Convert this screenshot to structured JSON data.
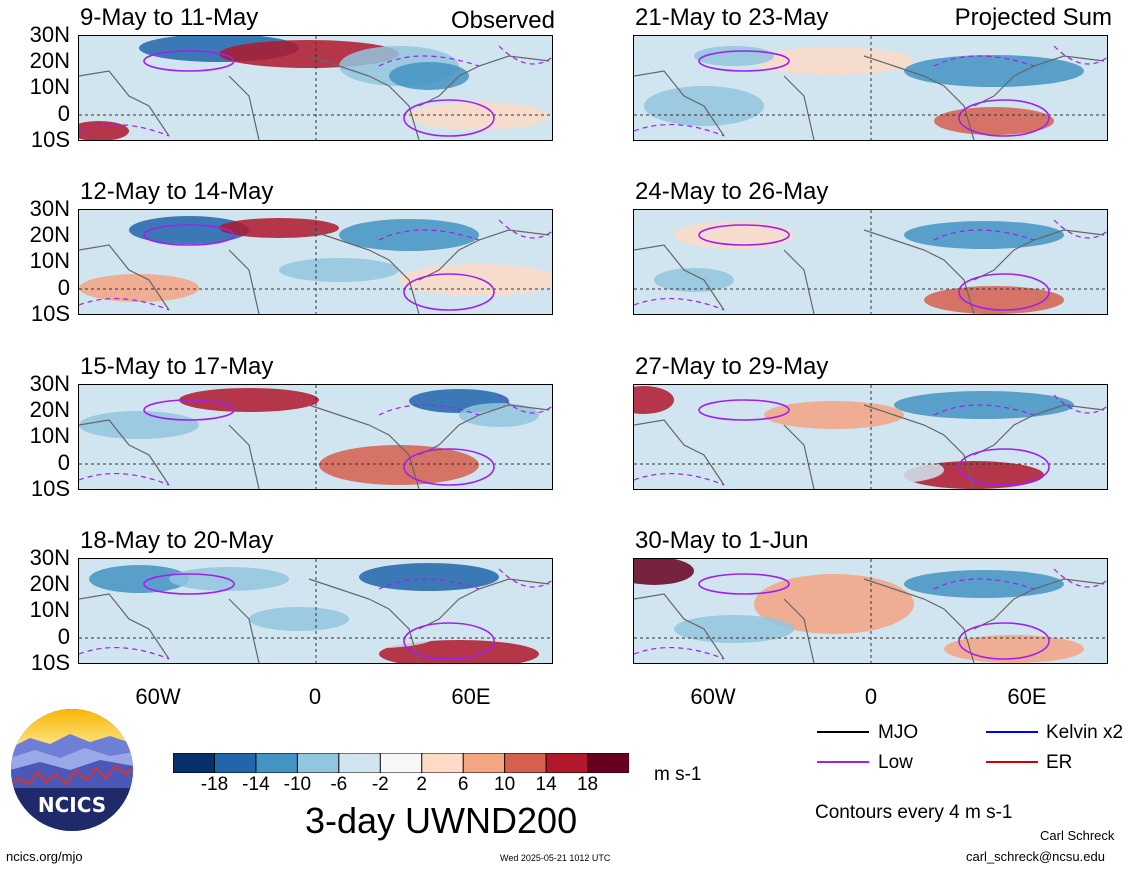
{
  "header": {
    "observed_label": "Observed",
    "projected_label": "Projected Sum"
  },
  "panels": [
    {
      "title": "9-May to 11-May"
    },
    {
      "title": "12-May to 14-May"
    },
    {
      "title": "15-May to 17-May"
    },
    {
      "title": "18-May to 20-May"
    },
    {
      "title": "21-May to 23-May"
    },
    {
      "title": "24-May to 26-May"
    },
    {
      "title": "27-May to 29-May"
    },
    {
      "title": "30-May to 1-Jun"
    }
  ],
  "axes": {
    "lat_labels": [
      "30N",
      "20N",
      "10N",
      "0",
      "10S"
    ],
    "lon_labels": [
      "60W",
      "0",
      "60E"
    ]
  },
  "colorbar": {
    "labels": [
      "-18",
      "-14",
      "-10",
      "-6",
      "-2",
      "2",
      "6",
      "10",
      "14",
      "18"
    ],
    "colors": [
      "#08306b",
      "#2166ac",
      "#4393c3",
      "#92c5de",
      "#d1e5f0",
      "#f7f7f7",
      "#fddbc7",
      "#f4a582",
      "#d6604d",
      "#b2182b",
      "#67001f"
    ],
    "units": "m s-1"
  },
  "title": "3-day UWND200",
  "legend": {
    "items": [
      {
        "label": "MJO",
        "color": "#000000"
      },
      {
        "label": "Kelvin x2",
        "color": "#0000ff"
      },
      {
        "label": "Low",
        "color": "#a020f0"
      },
      {
        "label": "ER",
        "color": "#d00000"
      }
    ],
    "contours_note": "Contours every 4 m s-1"
  },
  "footer": {
    "url": "ncics.org/mjo",
    "timestamp": "Wed 2025-05-21 1012 UTC",
    "author": "Carl Schreck",
    "email": "carl_schreck@ncsu.edu",
    "logo_text": "NCICS"
  }
}
